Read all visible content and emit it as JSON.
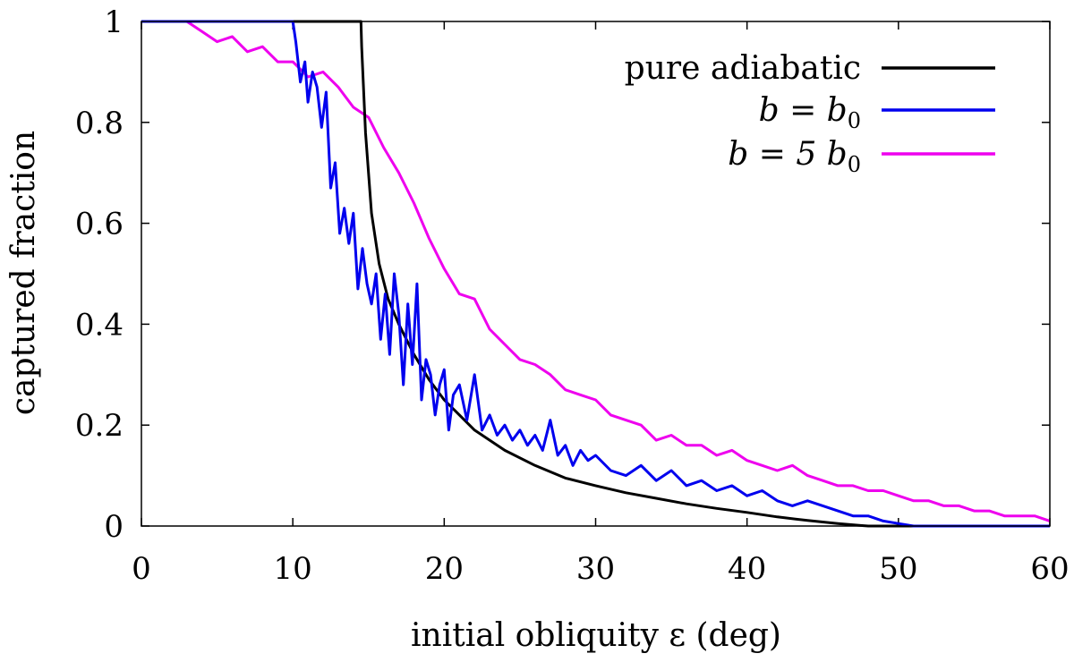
{
  "chart_data": {
    "type": "line",
    "title": "",
    "xlabel": "initial obliquity ε (deg)",
    "ylabel": "captured fraction",
    "xlim": [
      0,
      60
    ],
    "ylim": [
      0,
      1
    ],
    "x_ticks": [
      "0",
      "10",
      "20",
      "30",
      "40",
      "50",
      "60"
    ],
    "y_ticks": [
      "0",
      "0.2",
      "0.4",
      "0.6",
      "0.8",
      "1"
    ],
    "legend_position": "top-right",
    "series": [
      {
        "name": "pure adiabatic",
        "legend_prefix": "pure adiabatic",
        "legend_math": "",
        "legend_sub": "",
        "color": "#000000",
        "x": [
          0,
          14.5,
          14.55,
          14.8,
          15.2,
          15.7,
          16.3,
          17,
          18,
          19,
          20,
          22,
          24,
          26,
          28,
          30,
          32,
          34,
          36,
          38,
          40,
          42,
          44,
          46,
          47.5,
          48,
          50,
          52,
          55,
          60
        ],
        "values": [
          1,
          1,
          0.95,
          0.78,
          0.62,
          0.52,
          0.45,
          0.4,
          0.34,
          0.29,
          0.25,
          0.19,
          0.15,
          0.12,
          0.095,
          0.08,
          0.066,
          0.055,
          0.044,
          0.035,
          0.027,
          0.018,
          0.011,
          0.005,
          0.001,
          0,
          0,
          0,
          0,
          0
        ]
      },
      {
        "name": "b = b0",
        "legend_prefix": "",
        "legend_math": "b = b",
        "legend_sub": "0",
        "color": "#0000ee",
        "x": [
          0,
          10,
          10.2,
          10.5,
          10.8,
          11,
          11.3,
          11.6,
          11.9,
          12.2,
          12.5,
          12.8,
          13.1,
          13.4,
          13.7,
          14,
          14.3,
          14.6,
          14.9,
          15.2,
          15.5,
          15.8,
          16.1,
          16.4,
          16.7,
          17,
          17.3,
          17.6,
          17.9,
          18.2,
          18.5,
          18.8,
          19.1,
          19.4,
          19.7,
          20,
          20.3,
          20.6,
          21,
          21.5,
          22,
          22.5,
          23,
          23.5,
          24,
          24.5,
          25,
          25.5,
          26,
          26.5,
          27,
          27.5,
          28,
          28.5,
          29,
          29.5,
          30,
          31,
          32,
          33,
          34,
          35,
          36,
          37,
          38,
          39,
          40,
          41,
          42,
          43,
          44,
          45,
          46,
          47,
          48,
          49,
          50,
          51,
          52,
          55,
          60
        ],
        "values": [
          1,
          1,
          0.96,
          0.88,
          0.92,
          0.84,
          0.9,
          0.87,
          0.79,
          0.86,
          0.67,
          0.72,
          0.58,
          0.63,
          0.56,
          0.62,
          0.47,
          0.55,
          0.48,
          0.44,
          0.5,
          0.37,
          0.46,
          0.34,
          0.5,
          0.42,
          0.28,
          0.44,
          0.32,
          0.48,
          0.25,
          0.33,
          0.3,
          0.22,
          0.28,
          0.31,
          0.19,
          0.26,
          0.28,
          0.21,
          0.3,
          0.19,
          0.22,
          0.18,
          0.2,
          0.17,
          0.19,
          0.16,
          0.18,
          0.15,
          0.21,
          0.14,
          0.16,
          0.12,
          0.15,
          0.13,
          0.14,
          0.11,
          0.1,
          0.12,
          0.09,
          0.11,
          0.08,
          0.09,
          0.07,
          0.08,
          0.06,
          0.07,
          0.05,
          0.04,
          0.05,
          0.04,
          0.03,
          0.02,
          0.02,
          0.01,
          0.005,
          0,
          0,
          0,
          0
        ]
      },
      {
        "name": "b = 5 b0",
        "legend_prefix": "",
        "legend_math": "b = 5 b",
        "legend_sub": "0",
        "color": "#ee00ee",
        "x": [
          0,
          3,
          4,
          5,
          6,
          7,
          8,
          9,
          10,
          11,
          12,
          13,
          14,
          15,
          16,
          17,
          18,
          19,
          20,
          21,
          22,
          23,
          24,
          25,
          26,
          27,
          28,
          29,
          30,
          31,
          32,
          33,
          34,
          35,
          36,
          37,
          38,
          39,
          40,
          41,
          42,
          43,
          44,
          45,
          46,
          47,
          48,
          49,
          50,
          51,
          52,
          53,
          54,
          55,
          56,
          57,
          58,
          59,
          60
        ],
        "values": [
          1,
          1,
          0.98,
          0.96,
          0.97,
          0.94,
          0.95,
          0.92,
          0.92,
          0.89,
          0.9,
          0.87,
          0.83,
          0.81,
          0.75,
          0.7,
          0.64,
          0.57,
          0.51,
          0.46,
          0.45,
          0.39,
          0.36,
          0.33,
          0.32,
          0.3,
          0.27,
          0.26,
          0.25,
          0.22,
          0.21,
          0.2,
          0.17,
          0.18,
          0.16,
          0.16,
          0.14,
          0.15,
          0.13,
          0.12,
          0.11,
          0.12,
          0.1,
          0.09,
          0.08,
          0.08,
          0.07,
          0.07,
          0.06,
          0.05,
          0.05,
          0.04,
          0.04,
          0.03,
          0.03,
          0.02,
          0.02,
          0.02,
          0.01
        ]
      }
    ]
  }
}
